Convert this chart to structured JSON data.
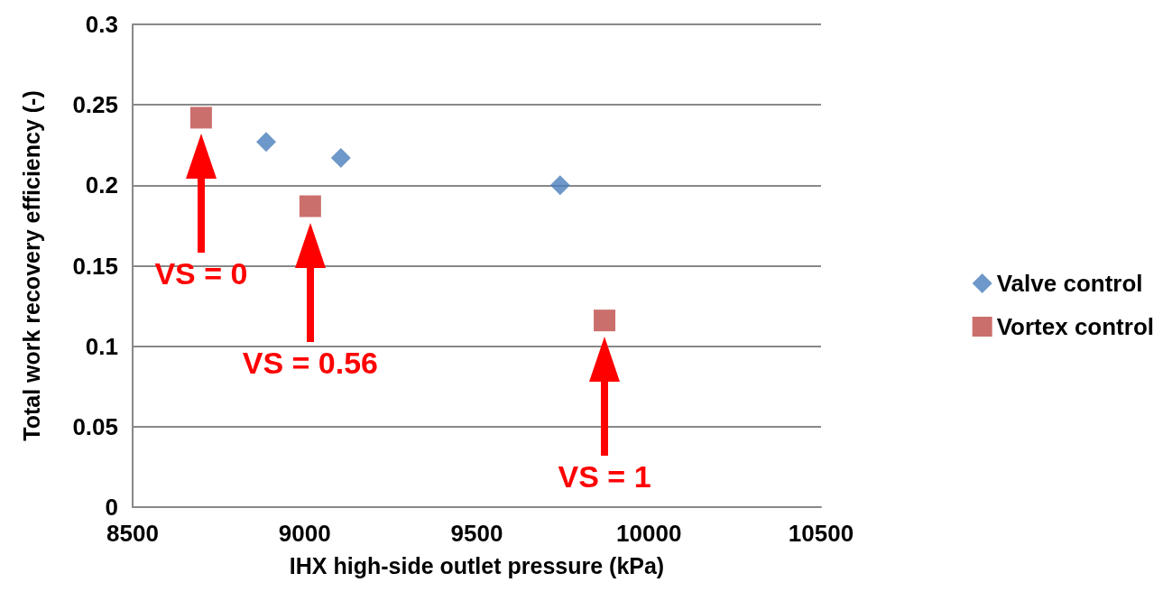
{
  "chart_data": {
    "type": "scatter",
    "xlabel": "IHX high-side outlet pressure (kPa)",
    "ylabel": "Total work recovery efficiency (-)",
    "xlim": [
      8500,
      10500
    ],
    "xticks": [
      8500,
      9000,
      9500,
      10000,
      10500
    ],
    "ylim": [
      0,
      0.3
    ],
    "yticks": [
      0,
      0.05,
      0.1,
      0.15,
      0.2,
      0.25,
      0.3
    ],
    "grid": "y",
    "legend": "right",
    "series": [
      {
        "name": "Valve control",
        "color": "#4a7ebb",
        "marker": "diamond",
        "x": [
          8888,
          9105,
          9742
        ],
        "values": [
          0.227,
          0.217,
          0.2
        ]
      },
      {
        "name": "Vortex control",
        "color": "#be4b48",
        "marker": "square",
        "x": [
          8699,
          9016,
          9871
        ],
        "values": [
          0.242,
          0.187,
          0.116
        ]
      }
    ],
    "annotations": [
      "VS = 0",
      "VS = 0.56",
      "VS = 1"
    ]
  }
}
